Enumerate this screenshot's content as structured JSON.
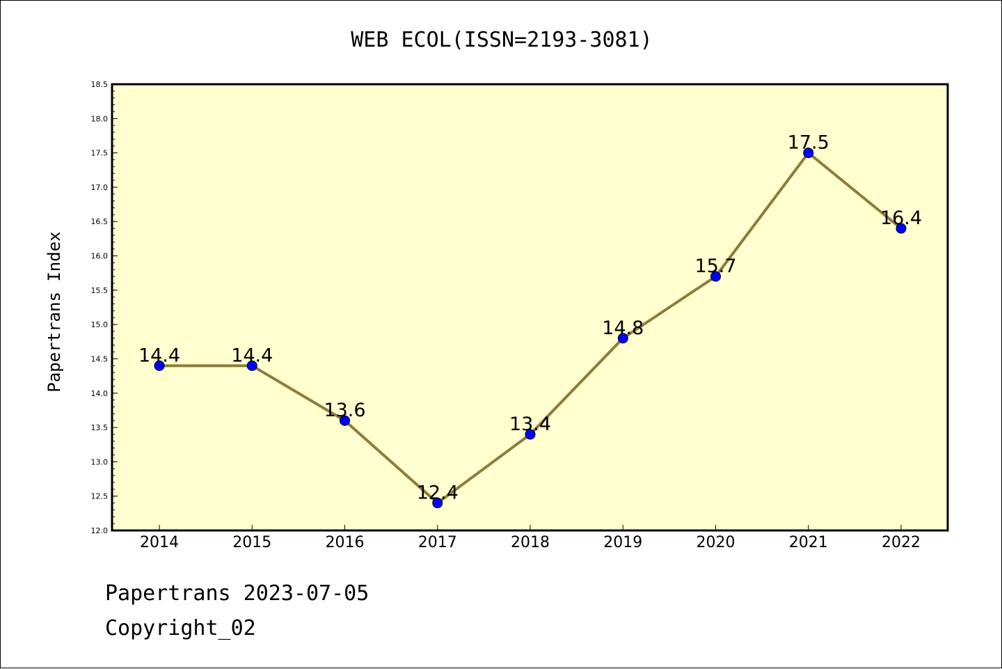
{
  "chart_data": {
    "type": "line",
    "title": "WEB ECOL(ISSN=2193-3081)",
    "xlabel": "",
    "ylabel": "Papertrans Index",
    "categories": [
      "2014",
      "2015",
      "2016",
      "2017",
      "2018",
      "2019",
      "2020",
      "2021",
      "2022"
    ],
    "series": [
      {
        "values": [
          14.4,
          14.4,
          13.6,
          12.4,
          13.4,
          14.8,
          15.7,
          17.5,
          16.4
        ],
        "data_labels": [
          "14.4",
          "14.4",
          "13.6",
          "12.4",
          "13.4",
          "14.8",
          "15.7",
          "17.5",
          "16.4"
        ]
      }
    ],
    "ylim": [
      12.0,
      18.5
    ],
    "yticks": [
      "12.0",
      "12.5",
      "13.0",
      "13.5",
      "14.0",
      "14.5",
      "15.0",
      "15.5",
      "16.0",
      "16.5",
      "17.0",
      "17.5",
      "18.0",
      "18.5"
    ],
    "grid": false,
    "legend": "none",
    "colors": {
      "plot_background": "#ffffd0",
      "line": "#8b7d3a",
      "marker": "#0000ff"
    }
  },
  "footer": {
    "line1": "Papertrans 2023-07-05",
    "line2": "Copyright_02"
  }
}
